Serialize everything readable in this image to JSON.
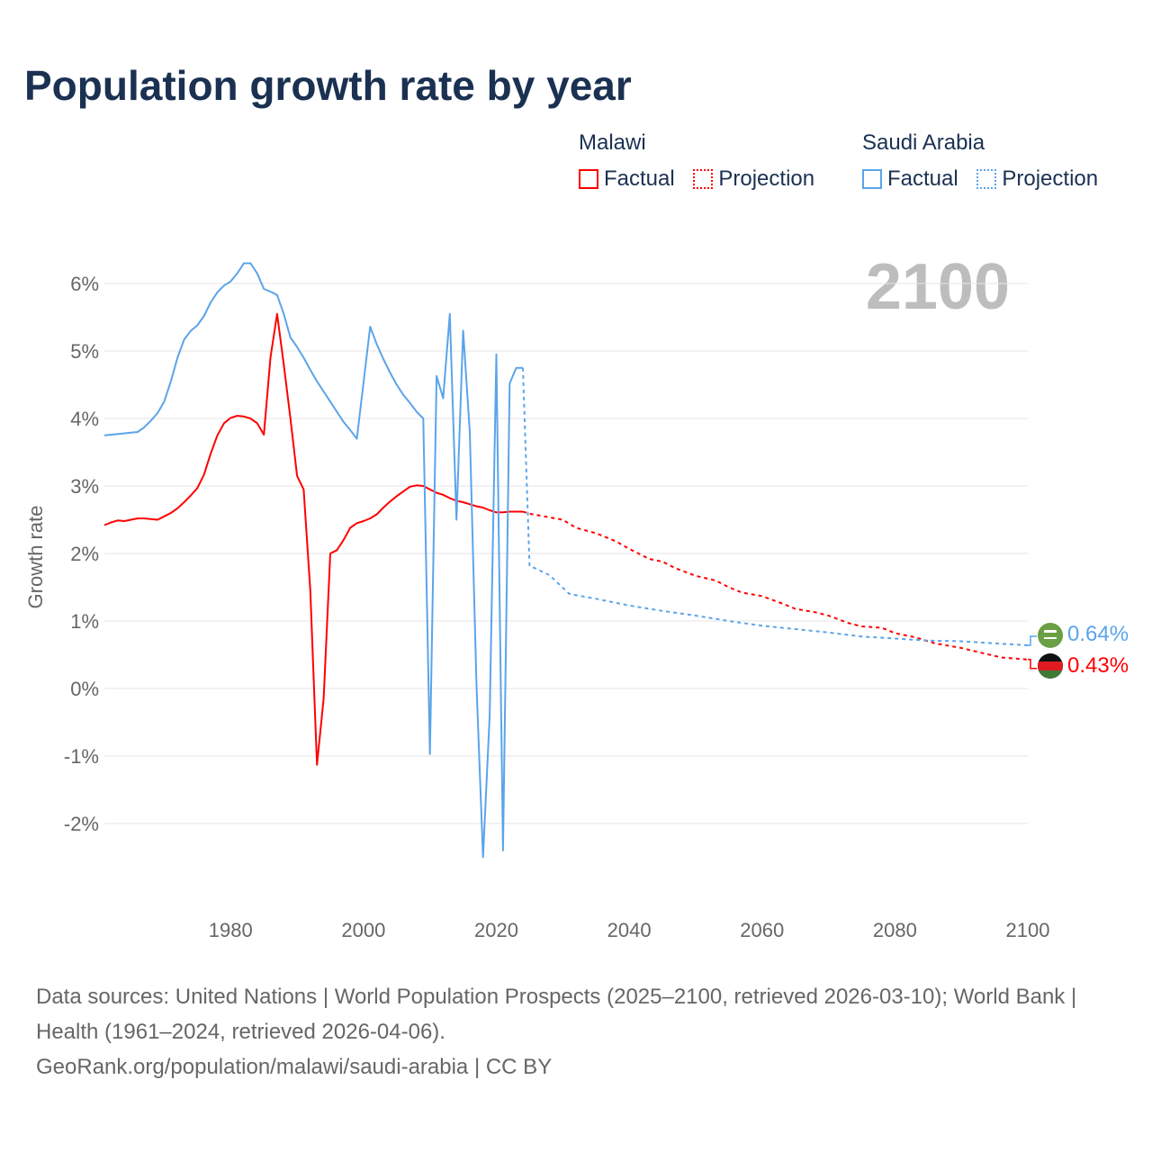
{
  "title": "Population growth rate by year",
  "current_year": "2100",
  "legend": {
    "groups": [
      {
        "name": "Malawi",
        "factual_label": "Factual",
        "projection_label": "Projection",
        "color": "#ff0000"
      },
      {
        "name": "Saudi Arabia",
        "factual_label": "Factual",
        "projection_label": "Projection",
        "color": "#5ba4ea"
      }
    ]
  },
  "end_labels": {
    "saudi": "0.64%",
    "malawi": "0.43%"
  },
  "footer": {
    "line1": "Data sources: United Nations | World Population Prospects (2025–2100, retrieved 2026-03-10); World Bank | Health (1961–2024, retrieved 2026-04-06).",
    "line2": "GeoRank.org/population/malawi/saudi-arabia | CC BY"
  },
  "chart_data": {
    "type": "line",
    "title": "Population growth rate by year",
    "xlabel": "",
    "ylabel": "Growth rate",
    "xlim": [
      1961,
      2100
    ],
    "ylim": [
      -3,
      6.5
    ],
    "x_ticks": [
      1980,
      2000,
      2020,
      2040,
      2060,
      2080,
      2100
    ],
    "x_tick_labels": [
      "1980",
      "2000",
      "2020",
      "2040",
      "2060",
      "2080",
      "2100"
    ],
    "y_ticks": [
      -2,
      -1,
      0,
      1,
      2,
      3,
      4,
      5,
      6
    ],
    "y_tick_labels": [
      "-2%",
      "-1%",
      "0%",
      "1%",
      "2%",
      "3%",
      "4%",
      "5%",
      "6%"
    ],
    "grid": true,
    "legend_position": "top-right",
    "series": [
      {
        "name": "Malawi Factual",
        "color": "#ff0000",
        "dashed": false,
        "points": [
          [
            1961,
            2.42
          ],
          [
            1962,
            2.46
          ],
          [
            1963,
            2.49
          ],
          [
            1964,
            2.48
          ],
          [
            1965,
            2.5
          ],
          [
            1966,
            2.52
          ],
          [
            1967,
            2.52
          ],
          [
            1968,
            2.51
          ],
          [
            1969,
            2.5
          ],
          [
            1970,
            2.55
          ],
          [
            1971,
            2.6
          ],
          [
            1972,
            2.67
          ],
          [
            1973,
            2.76
          ],
          [
            1974,
            2.86
          ],
          [
            1975,
            2.97
          ],
          [
            1976,
            3.17
          ],
          [
            1977,
            3.48
          ],
          [
            1978,
            3.75
          ],
          [
            1979,
            3.93
          ],
          [
            1980,
            4.01
          ],
          [
            1981,
            4.04
          ],
          [
            1982,
            4.03
          ],
          [
            1983,
            4.0
          ],
          [
            1984,
            3.93
          ],
          [
            1985,
            3.76
          ],
          [
            1986,
            4.9
          ],
          [
            1987,
            5.55
          ],
          [
            1988,
            4.8
          ],
          [
            1989,
            4.0
          ],
          [
            1990,
            3.15
          ],
          [
            1991,
            2.95
          ],
          [
            1992,
            1.45
          ],
          [
            1993,
            -1.13
          ],
          [
            1994,
            -0.15
          ],
          [
            1995,
            2.0
          ],
          [
            1996,
            2.05
          ],
          [
            1997,
            2.2
          ],
          [
            1998,
            2.38
          ],
          [
            1999,
            2.45
          ],
          [
            2000,
            2.48
          ],
          [
            2001,
            2.52
          ],
          [
            2002,
            2.58
          ],
          [
            2003,
            2.68
          ],
          [
            2004,
            2.77
          ],
          [
            2005,
            2.85
          ],
          [
            2006,
            2.92
          ],
          [
            2007,
            2.99
          ],
          [
            2008,
            3.01
          ],
          [
            2009,
            3.0
          ],
          [
            2010,
            2.95
          ],
          [
            2011,
            2.9
          ],
          [
            2012,
            2.87
          ],
          [
            2013,
            2.82
          ],
          [
            2014,
            2.78
          ],
          [
            2015,
            2.76
          ],
          [
            2016,
            2.73
          ],
          [
            2017,
            2.7
          ],
          [
            2018,
            2.68
          ],
          [
            2019,
            2.64
          ],
          [
            2020,
            2.61
          ],
          [
            2021,
            2.61
          ],
          [
            2022,
            2.62
          ],
          [
            2023,
            2.62
          ],
          [
            2024,
            2.62
          ]
        ]
      },
      {
        "name": "Malawi Projection",
        "color": "#ff0000",
        "dashed": true,
        "points": [
          [
            2024,
            2.62
          ],
          [
            2025,
            2.59
          ],
          [
            2030,
            2.5
          ],
          [
            2032,
            2.38
          ],
          [
            2035,
            2.3
          ],
          [
            2038,
            2.18
          ],
          [
            2040,
            2.07
          ],
          [
            2043,
            1.92
          ],
          [
            2045,
            1.88
          ],
          [
            2047,
            1.78
          ],
          [
            2050,
            1.67
          ],
          [
            2053,
            1.6
          ],
          [
            2055,
            1.5
          ],
          [
            2057,
            1.42
          ],
          [
            2060,
            1.37
          ],
          [
            2063,
            1.26
          ],
          [
            2065,
            1.18
          ],
          [
            2068,
            1.13
          ],
          [
            2070,
            1.08
          ],
          [
            2073,
            0.97
          ],
          [
            2075,
            0.92
          ],
          [
            2078,
            0.9
          ],
          [
            2080,
            0.82
          ],
          [
            2083,
            0.76
          ],
          [
            2086,
            0.67
          ],
          [
            2090,
            0.6
          ],
          [
            2093,
            0.53
          ],
          [
            2096,
            0.46
          ],
          [
            2100,
            0.43
          ]
        ]
      },
      {
        "name": "Saudi Arabia Factual",
        "color": "#5ba4ea",
        "dashed": false,
        "points": [
          [
            1961,
            3.75
          ],
          [
            1962,
            3.76
          ],
          [
            1963,
            3.77
          ],
          [
            1964,
            3.78
          ],
          [
            1965,
            3.79
          ],
          [
            1966,
            3.8
          ],
          [
            1967,
            3.87
          ],
          [
            1968,
            3.97
          ],
          [
            1969,
            4.08
          ],
          [
            1970,
            4.25
          ],
          [
            1971,
            4.55
          ],
          [
            1972,
            4.9
          ],
          [
            1973,
            5.17
          ],
          [
            1974,
            5.3
          ],
          [
            1975,
            5.38
          ],
          [
            1976,
            5.52
          ],
          [
            1977,
            5.72
          ],
          [
            1978,
            5.87
          ],
          [
            1979,
            5.97
          ],
          [
            1980,
            6.03
          ],
          [
            1981,
            6.15
          ],
          [
            1982,
            6.3
          ],
          [
            1983,
            6.3
          ],
          [
            1984,
            6.15
          ],
          [
            1985,
            5.92
          ],
          [
            1986,
            5.88
          ],
          [
            1987,
            5.83
          ],
          [
            1988,
            5.55
          ],
          [
            1989,
            5.2
          ],
          [
            1990,
            5.06
          ],
          [
            1991,
            4.9
          ],
          [
            1992,
            4.72
          ],
          [
            1993,
            4.55
          ],
          [
            1994,
            4.4
          ],
          [
            1995,
            4.25
          ],
          [
            1996,
            4.1
          ],
          [
            1997,
            3.95
          ],
          [
            1998,
            3.83
          ],
          [
            1999,
            3.7
          ],
          [
            2000,
            4.53
          ],
          [
            2001,
            5.36
          ],
          [
            2002,
            5.1
          ],
          [
            2003,
            4.88
          ],
          [
            2004,
            4.68
          ],
          [
            2005,
            4.5
          ],
          [
            2006,
            4.35
          ],
          [
            2007,
            4.23
          ],
          [
            2008,
            4.1
          ],
          [
            2009,
            4.0
          ],
          [
            2010,
            -0.97
          ],
          [
            2011,
            4.63
          ],
          [
            2012,
            4.3
          ],
          [
            2013,
            5.55
          ],
          [
            2014,
            2.5
          ],
          [
            2015,
            5.3
          ],
          [
            2016,
            3.8
          ],
          [
            2017,
            0.07
          ],
          [
            2018,
            -2.5
          ],
          [
            2019,
            -0.4
          ],
          [
            2020,
            4.95
          ],
          [
            2021,
            -2.4
          ],
          [
            2022,
            4.52
          ],
          [
            2023,
            4.75
          ],
          [
            2024,
            4.75
          ]
        ]
      },
      {
        "name": "Saudi Arabia Projection",
        "color": "#5ba4ea",
        "dashed": true,
        "points": [
          [
            2024,
            4.75
          ],
          [
            2025,
            1.82
          ],
          [
            2028,
            1.68
          ],
          [
            2031,
            1.4
          ],
          [
            2035,
            1.33
          ],
          [
            2040,
            1.23
          ],
          [
            2045,
            1.15
          ],
          [
            2050,
            1.08
          ],
          [
            2055,
            1.0
          ],
          [
            2060,
            0.93
          ],
          [
            2065,
            0.88
          ],
          [
            2070,
            0.83
          ],
          [
            2075,
            0.77
          ],
          [
            2080,
            0.74
          ],
          [
            2085,
            0.71
          ],
          [
            2090,
            0.7
          ],
          [
            2095,
            0.67
          ],
          [
            2100,
            0.64
          ]
        ]
      }
    ]
  }
}
